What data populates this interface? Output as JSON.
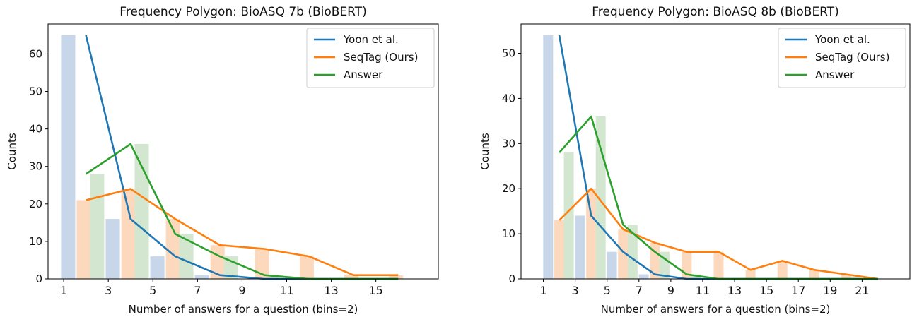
{
  "colors": {
    "yoon": "#1f77b4",
    "seqtag": "#ff7f0e",
    "answer": "#2ca02c",
    "yoon_bar": "#c8d6ea",
    "seqtag_bar": "#fcd9bc",
    "answer_bar": "#d3e6cf"
  },
  "chart_data": [
    {
      "type": "line",
      "title": "Frequency Polygon: BioASQ 7b (BioBERT)",
      "xlabel": "Number of answers for a question (bins=2)",
      "ylabel": "Counts",
      "xlim": [
        0.3,
        17.8
      ],
      "ylim": [
        0,
        68
      ],
      "xticks": [
        1,
        3,
        5,
        7,
        9,
        11,
        13,
        15
      ],
      "yticks": [
        0,
        10,
        20,
        30,
        40,
        50,
        60
      ],
      "grid": false,
      "legend": "top-right",
      "series": [
        {
          "name": "Yoon et al.",
          "color_key": "yoon",
          "x": [
            2,
            4,
            6,
            8,
            10,
            12,
            14,
            16
          ],
          "y": [
            65,
            16,
            6,
            1,
            0,
            0,
            0,
            0
          ]
        },
        {
          "name": "SeqTag (Ours)",
          "color_key": "seqtag",
          "x": [
            2,
            4,
            6,
            8,
            10,
            12,
            14,
            16
          ],
          "y": [
            21,
            24,
            16,
            9,
            8,
            6,
            1,
            1
          ]
        },
        {
          "name": "Answer",
          "color_key": "answer",
          "x": [
            2,
            4,
            6,
            8,
            10,
            12,
            14,
            16
          ],
          "y": [
            28,
            36,
            12,
            6,
            1,
            0,
            0,
            0
          ]
        }
      ],
      "bars": [
        {
          "color_key": "yoon_bar",
          "x": [
            1.2,
            3.2,
            5.2,
            7.2,
            9.2,
            11.2,
            13.2,
            15.2
          ],
          "y": [
            65,
            16,
            6,
            1,
            0,
            0,
            0,
            0
          ]
        },
        {
          "color_key": "seqtag_bar",
          "x": [
            1.9,
            3.9,
            5.9,
            7.9,
            9.9,
            11.9,
            13.9,
            15.9
          ],
          "y": [
            21,
            24,
            16,
            9,
            8,
            6,
            1,
            1
          ]
        },
        {
          "color_key": "answer_bar",
          "x": [
            2.5,
            4.5,
            6.5,
            8.5,
            10.5,
            12.5,
            14.5,
            16.5
          ],
          "y": [
            28,
            36,
            12,
            6,
            1,
            0,
            0,
            0
          ]
        }
      ]
    },
    {
      "type": "line",
      "title": "Frequency Polygon: BioASQ 8b (BioBERT)",
      "xlabel": "Number of answers for a question (bins=2)",
      "ylabel": "Counts",
      "xlim": [
        -0.4,
        24
      ],
      "ylim": [
        0,
        56.5
      ],
      "xticks": [
        1,
        3,
        5,
        7,
        9,
        11,
        13,
        15,
        17,
        19,
        21
      ],
      "yticks": [
        0,
        10,
        20,
        30,
        40,
        50
      ],
      "grid": false,
      "legend": "top-right",
      "series": [
        {
          "name": "Yoon et al.",
          "color_key": "yoon",
          "x": [
            2,
            4,
            6,
            8,
            10,
            12,
            14,
            16,
            18,
            20,
            22
          ],
          "y": [
            54,
            14,
            6,
            1,
            0,
            0,
            0,
            0,
            0,
            0,
            0
          ]
        },
        {
          "name": "SeqTag (Ours)",
          "color_key": "seqtag",
          "x": [
            2,
            4,
            6,
            8,
            10,
            12,
            14,
            16,
            18,
            20,
            22
          ],
          "y": [
            13,
            20,
            11,
            8,
            6,
            6,
            2,
            4,
            2,
            1,
            0
          ]
        },
        {
          "name": "Answer",
          "color_key": "answer",
          "x": [
            2,
            4,
            6,
            8,
            10,
            12,
            14,
            16,
            18,
            20,
            22
          ],
          "y": [
            28,
            36,
            12,
            6,
            1,
            0,
            0,
            0,
            0,
            0,
            0
          ]
        }
      ],
      "bars": [
        {
          "color_key": "yoon_bar",
          "x": [
            1.3,
            3.3,
            5.3,
            7.3,
            9.3,
            11.3,
            13.3,
            15.3,
            17.3,
            19.3,
            21.3
          ],
          "y": [
            54,
            14,
            6,
            1,
            0,
            0,
            0,
            0,
            0,
            0,
            0
          ]
        },
        {
          "color_key": "seqtag_bar",
          "x": [
            2.0,
            4.0,
            6.0,
            8.0,
            10.0,
            12.0,
            14.0,
            16.0,
            18.0,
            20.0,
            22.0
          ],
          "y": [
            13,
            20,
            11,
            8,
            6,
            6,
            2,
            4,
            2,
            1,
            0
          ]
        },
        {
          "color_key": "answer_bar",
          "x": [
            2.6,
            4.6,
            6.6,
            8.6,
            10.6,
            12.6,
            14.6,
            16.6,
            18.6,
            20.6,
            22.6
          ],
          "y": [
            28,
            36,
            12,
            6,
            1,
            0,
            0,
            0,
            0,
            0,
            0
          ]
        }
      ]
    }
  ]
}
